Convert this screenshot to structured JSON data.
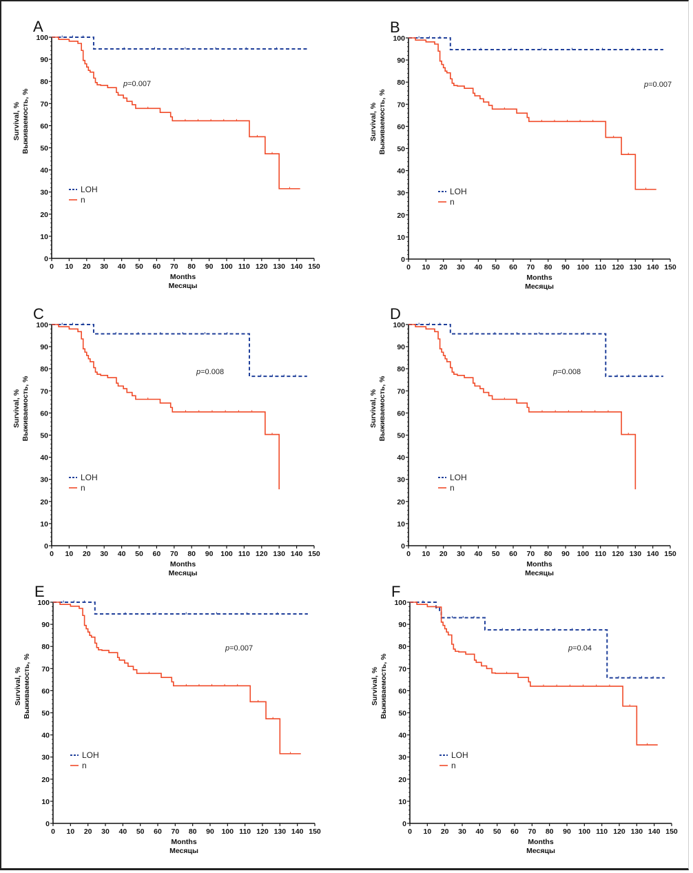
{
  "figure": {
    "colors": {
      "loh": "#1f3f9a",
      "n": "#f04a28",
      "axis": "#111111"
    }
  },
  "chart_data": [
    {
      "type": "line",
      "subtype": "kaplan-meier",
      "panel": "A",
      "xlabel": [
        "Months",
        "Месяцы"
      ],
      "ylabel": [
        "Survival, %",
        "Выживаемость, %"
      ],
      "xlim": [
        0,
        150
      ],
      "ylim": [
        0,
        100
      ],
      "xticks": [
        0,
        10,
        20,
        30,
        40,
        50,
        60,
        70,
        80,
        90,
        100,
        110,
        120,
        130,
        140,
        150
      ],
      "yticks": [
        0,
        10,
        20,
        30,
        40,
        50,
        60,
        70,
        80,
        90,
        100
      ],
      "legend": [
        "LOH",
        "n"
      ],
      "legend_position": "lower-left",
      "annotation": {
        "prefix": "p",
        "text": "=0.007"
      },
      "series": [
        {
          "name": "LOH",
          "style": "dashed",
          "x": [
            0,
            24,
            146
          ],
          "y": [
            100,
            94.7,
            94.7
          ]
        },
        {
          "name": "n",
          "style": "solid",
          "x": [
            0,
            4,
            10,
            15,
            17,
            18,
            19,
            20,
            21,
            22,
            24,
            25,
            26,
            28,
            32,
            37,
            38,
            41,
            43,
            46,
            48,
            62,
            68,
            69,
            113,
            122,
            130,
            142
          ],
          "y": [
            100,
            99,
            98.2,
            97.2,
            94,
            89.5,
            88,
            86.5,
            85,
            84.2,
            81.5,
            79.5,
            78.5,
            78.2,
            77.2,
            75,
            73.8,
            72.5,
            71,
            69.5,
            67.8,
            66,
            64,
            62.2,
            55,
            47.3,
            31.5,
            31.5
          ]
        }
      ]
    },
    {
      "type": "line",
      "subtype": "kaplan-meier",
      "panel": "B",
      "xlabel": [
        "Months",
        "Месяцы"
      ],
      "ylabel": [
        "Survival, %",
        "Выживаемость, %"
      ],
      "xlim": [
        0,
        150
      ],
      "ylim": [
        0,
        100
      ],
      "xticks": [
        0,
        10,
        20,
        30,
        40,
        50,
        60,
        70,
        80,
        90,
        100,
        110,
        120,
        130,
        140,
        150
      ],
      "yticks": [
        0,
        10,
        20,
        30,
        40,
        50,
        60,
        70,
        80,
        90,
        100
      ],
      "legend": [
        "LOH",
        "n"
      ],
      "legend_position": "lower-left",
      "annotation": {
        "prefix": "p",
        "text": "=0.007"
      },
      "series": [
        {
          "name": "LOH",
          "style": "dashed",
          "x": [
            0,
            24,
            146
          ],
          "y": [
            100,
            94.7,
            94.7
          ]
        },
        {
          "name": "n",
          "style": "solid",
          "x": [
            0,
            4,
            10,
            15,
            17,
            18,
            19,
            20,
            21,
            22,
            24,
            25,
            26,
            28,
            32,
            37,
            38,
            41,
            43,
            46,
            48,
            62,
            68,
            69,
            113,
            122,
            130,
            142
          ],
          "y": [
            100,
            99,
            98.2,
            97.2,
            94,
            89.5,
            88,
            86.5,
            85,
            84.2,
            81.5,
            79.5,
            78.5,
            78.2,
            77.2,
            75,
            73.8,
            72.5,
            71,
            69.5,
            67.8,
            66,
            64,
            62.2,
            55,
            47.3,
            31.5,
            31.5
          ]
        }
      ]
    },
    {
      "type": "line",
      "subtype": "kaplan-meier",
      "panel": "C",
      "xlabel": [
        "Months",
        "Месяцы"
      ],
      "ylabel": [
        "Survival, %",
        "Выживаемость, %"
      ],
      "xlim": [
        0,
        150
      ],
      "ylim": [
        0,
        100
      ],
      "xticks": [
        0,
        10,
        20,
        30,
        40,
        50,
        60,
        70,
        80,
        90,
        100,
        110,
        120,
        130,
        140,
        150
      ],
      "yticks": [
        0,
        10,
        20,
        30,
        40,
        50,
        60,
        70,
        80,
        90,
        100
      ],
      "legend": [
        "LOH",
        "n"
      ],
      "legend_position": "lower-left",
      "annotation": {
        "prefix": "p",
        "text": "=0.008"
      },
      "series": [
        {
          "name": "LOH",
          "style": "dashed",
          "x": [
            0,
            24,
            113,
            146
          ],
          "y": [
            100,
            95.8,
            76.6,
            76.6
          ]
        },
        {
          "name": "n",
          "style": "solid",
          "x": [
            0,
            4,
            10,
            15,
            17,
            18,
            19,
            20,
            21,
            22,
            24,
            25,
            26,
            28,
            32,
            37,
            38,
            41,
            43,
            46,
            48,
            62,
            68,
            69,
            122,
            130,
            130
          ],
          "y": [
            100,
            99,
            98,
            96.8,
            93.5,
            89,
            87.5,
            86,
            84.5,
            83.2,
            80.5,
            78.5,
            77.5,
            77,
            76,
            73.5,
            72.2,
            71,
            69.3,
            67.8,
            66.2,
            64.5,
            62.5,
            60.5,
            50.3,
            50.3,
            25.5
          ]
        }
      ]
    },
    {
      "type": "line",
      "subtype": "kaplan-meier",
      "panel": "D",
      "xlabel": [
        "Months",
        "Месяцы"
      ],
      "ylabel": [
        "Survival, %",
        "Выживаемость, %"
      ],
      "xlim": [
        0,
        150
      ],
      "ylim": [
        0,
        100
      ],
      "xticks": [
        0,
        10,
        20,
        30,
        40,
        50,
        60,
        70,
        80,
        90,
        100,
        110,
        120,
        130,
        140,
        150
      ],
      "yticks": [
        0,
        10,
        20,
        30,
        40,
        50,
        60,
        70,
        80,
        90,
        100
      ],
      "legend": [
        "LOH",
        "n"
      ],
      "legend_position": "lower-left",
      "annotation": {
        "prefix": "p",
        "text": "=0.008"
      },
      "series": [
        {
          "name": "LOH",
          "style": "dashed",
          "x": [
            0,
            24,
            113,
            146
          ],
          "y": [
            100,
            95.8,
            76.6,
            76.6
          ]
        },
        {
          "name": "n",
          "style": "solid",
          "x": [
            0,
            4,
            10,
            15,
            17,
            18,
            19,
            20,
            21,
            22,
            24,
            25,
            26,
            28,
            32,
            37,
            38,
            41,
            43,
            46,
            48,
            62,
            68,
            69,
            122,
            130,
            130
          ],
          "y": [
            100,
            99,
            98,
            96.8,
            93.5,
            89,
            87.5,
            86,
            84.5,
            83.2,
            80.5,
            78.5,
            77.5,
            77,
            76,
            73.5,
            72.2,
            71,
            69.3,
            67.8,
            66.2,
            64.5,
            62.5,
            60.5,
            50.3,
            50.3,
            25.5
          ]
        }
      ]
    },
    {
      "type": "line",
      "subtype": "kaplan-meier",
      "panel": "E",
      "xlabel": [
        "Months",
        "Месяцы"
      ],
      "ylabel": [
        "Survival, %",
        "Выживаемость, %"
      ],
      "xlim": [
        0,
        150
      ],
      "ylim": [
        0,
        100
      ],
      "xticks": [
        0,
        10,
        20,
        30,
        40,
        50,
        60,
        70,
        80,
        90,
        100,
        110,
        120,
        130,
        140,
        150
      ],
      "yticks": [
        0,
        10,
        20,
        30,
        40,
        50,
        60,
        70,
        80,
        90,
        100
      ],
      "legend": [
        "LOH",
        "n"
      ],
      "legend_position": "lower-left",
      "annotation": {
        "prefix": "p",
        "text": "=0.007"
      },
      "series": [
        {
          "name": "LOH",
          "style": "dashed",
          "x": [
            0,
            24,
            146
          ],
          "y": [
            100,
            94.7,
            94.7
          ]
        },
        {
          "name": "n",
          "style": "solid",
          "x": [
            0,
            4,
            10,
            15,
            17,
            18,
            19,
            20,
            21,
            22,
            24,
            25,
            26,
            28,
            32,
            37,
            38,
            41,
            43,
            46,
            48,
            62,
            68,
            69,
            113,
            122,
            130,
            142
          ],
          "y": [
            100,
            99,
            98.2,
            97.2,
            94,
            89.5,
            88,
            86.5,
            85,
            84.2,
            81.5,
            79.5,
            78.5,
            78.2,
            77.2,
            75,
            73.8,
            72.5,
            71,
            69.5,
            67.8,
            66,
            64,
            62.2,
            55,
            47.3,
            31.5,
            31.5
          ]
        }
      ]
    },
    {
      "type": "line",
      "subtype": "kaplan-meier",
      "panel": "F",
      "xlabel": [
        "Months",
        "Месяцы"
      ],
      "ylabel": [
        "Survival, %",
        "Выживаемость, %"
      ],
      "xlim": [
        0,
        150
      ],
      "ylim": [
        0,
        100
      ],
      "xticks": [
        0,
        10,
        20,
        30,
        40,
        50,
        60,
        70,
        80,
        90,
        100,
        110,
        120,
        130,
        140,
        150
      ],
      "yticks": [
        0,
        10,
        20,
        30,
        40,
        50,
        60,
        70,
        80,
        90,
        100
      ],
      "legend": [
        "LOH",
        "n"
      ],
      "legend_position": "lower-left",
      "annotation": {
        "prefix": "p",
        "text": "=0.04"
      },
      "series": [
        {
          "name": "LOH",
          "style": "dashed",
          "x": [
            0,
            15,
            17,
            18,
            43,
            113,
            146
          ],
          "y": [
            100,
            97.5,
            95.5,
            93,
            87.5,
            65.8,
            65.8
          ]
        },
        {
          "name": "n",
          "style": "solid",
          "x": [
            0,
            4,
            10,
            15,
            18,
            19,
            20,
            21,
            22,
            24,
            25,
            26,
            28,
            32,
            37,
            38,
            41,
            44,
            47,
            49,
            62,
            68,
            69,
            122,
            130,
            142
          ],
          "y": [
            100,
            99,
            98,
            97.8,
            91,
            89.5,
            88,
            86.5,
            85.2,
            81,
            78.8,
            77.8,
            77.5,
            76.5,
            73.8,
            72.8,
            71.2,
            70,
            68,
            67.8,
            66,
            64,
            62,
            53,
            35.5,
            35.5
          ]
        }
      ]
    }
  ]
}
